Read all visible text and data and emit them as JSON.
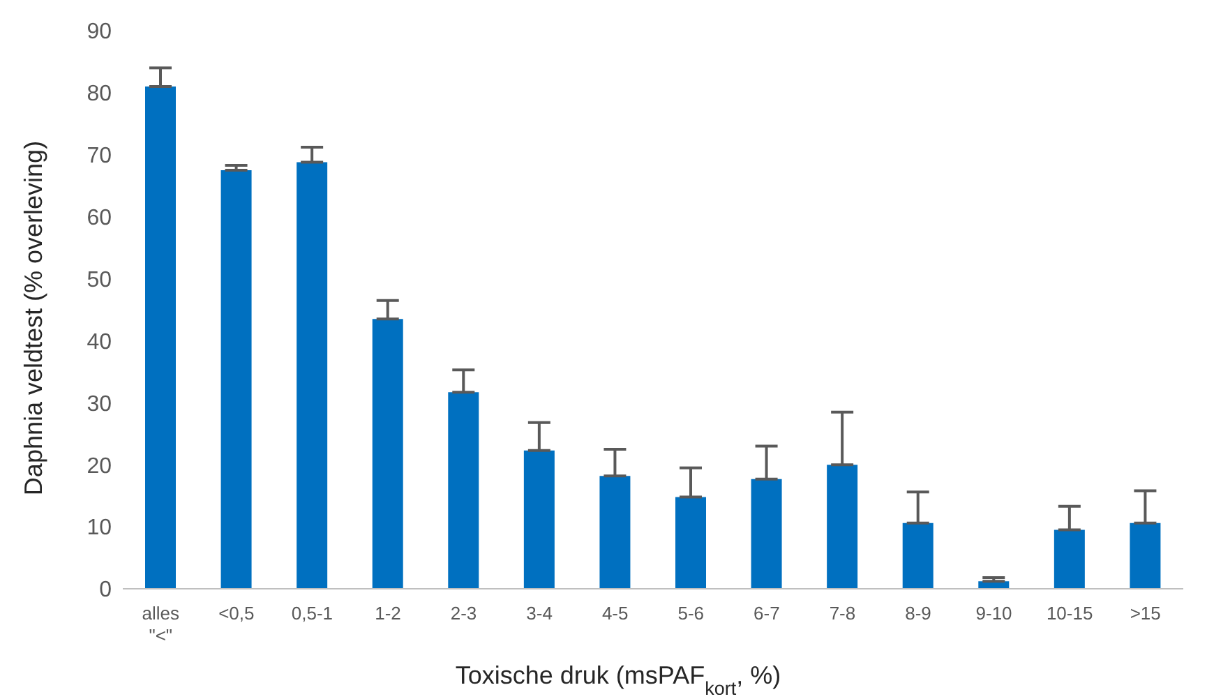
{
  "chart_data": {
    "type": "bar",
    "xlabel": "Toxische druk (msPAF$_{kort}$, %)",
    "ylabel": "Daphnia veldtest (% overleving)",
    "categories": [
      "alles\n\"<\"",
      "<0,5",
      "0,5-1",
      "1-2",
      "2-3",
      "3-4",
      "4-5",
      "5-6",
      "6-7",
      "7-8",
      "8-9",
      "9-10",
      "10-15",
      ">15"
    ],
    "values": [
      81,
      67.5,
      68.8,
      43.5,
      31.7,
      22.3,
      18.2,
      14.8,
      17.7,
      20,
      10.6,
      1.2,
      9.5,
      10.6
    ],
    "errors": [
      [
        81,
        84
      ],
      [
        67.5,
        68.3
      ],
      [
        68.8,
        71.2
      ],
      [
        43.5,
        46.5
      ],
      [
        31.7,
        35.3
      ],
      [
        22.3,
        26.8
      ],
      [
        18.2,
        22.5
      ],
      [
        14.8,
        19.5
      ],
      [
        17.7,
        23
      ],
      [
        20,
        28.5
      ],
      [
        10.6,
        15.6
      ],
      [
        1.2,
        1.8
      ],
      [
        9.5,
        13.3
      ],
      [
        10.6,
        15.8
      ]
    ],
    "color": "#0070c0",
    "ylim": [
      0,
      90
    ],
    "yticks": [
      0,
      10,
      20,
      30,
      40,
      50,
      60,
      70,
      80,
      90
    ],
    "grid": false,
    "legend": false
  }
}
